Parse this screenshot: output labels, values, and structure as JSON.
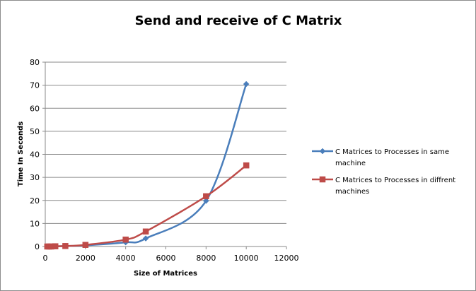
{
  "chart_data": {
    "type": "line",
    "title": "Send and receive of C Matrix",
    "xlabel": "Size of Matrices",
    "ylabel": "Time In Seconds",
    "xlim": [
      0,
      12000
    ],
    "ylim": [
      0,
      80
    ],
    "xticks": [
      0,
      2000,
      4000,
      6000,
      8000,
      10000,
      12000
    ],
    "yticks": [
      0,
      10,
      20,
      30,
      40,
      50,
      60,
      70,
      80
    ],
    "grid": "horizontal",
    "legend_position": "right",
    "series": [
      {
        "name": "C Matrices to Processes in same machine",
        "legend_lines": [
          "C Matrices to Processes in same",
          "machine"
        ],
        "color": "#4a7ebb",
        "marker": "diamond",
        "x": [
          100,
          200,
          300,
          500,
          1000,
          2000,
          4000,
          5000,
          8000,
          10000
        ],
        "y": [
          0,
          0,
          0,
          0.1,
          0.2,
          0.5,
          1.8,
          3.5,
          19.8,
          70.5
        ]
      },
      {
        "name": "C Matrices to Processes in diffrent machines",
        "legend_lines": [
          "C Matrices to Processes in diffrent",
          "machines"
        ],
        "color": "#be4b48",
        "marker": "square",
        "x": [
          100,
          200,
          300,
          500,
          1000,
          2000,
          4000,
          5000,
          8000,
          10000
        ],
        "y": [
          0,
          0,
          0,
          0.1,
          0.2,
          0.7,
          3.0,
          6.5,
          21.8,
          35.2
        ]
      }
    ]
  }
}
